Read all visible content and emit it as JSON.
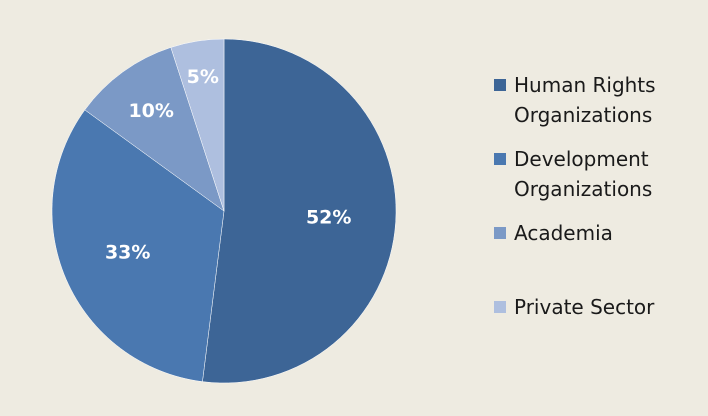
{
  "chart_data": {
    "type": "pie",
    "title": "",
    "series": [
      {
        "values": [
          52,
          33,
          10,
          5
        ]
      }
    ],
    "categories": [
      "Human Rights Organizations",
      "Development Organizations",
      "Academia",
      "Private Sector"
    ],
    "slices": [
      {
        "label": "Human Rights Organizations",
        "legend_text": "Human Rights\nOrganizations",
        "value": 52,
        "display": "52%",
        "color": "#3d6596"
      },
      {
        "label": "Development Organizations",
        "legend_text": "Development\nOrganizations",
        "value": 33,
        "display": "33%",
        "color": "#4a78b0"
      },
      {
        "label": "Academia",
        "legend_text": "Academia",
        "value": 10,
        "display": "10%",
        "color": "#7b99c6"
      },
      {
        "label": "Private Sector",
        "legend_text": "Private Sector",
        "value": 5,
        "display": "5%",
        "color": "#aebfdf"
      }
    ],
    "start_angle_deg": 0,
    "direction": "clockwise",
    "legend_position": "right"
  }
}
